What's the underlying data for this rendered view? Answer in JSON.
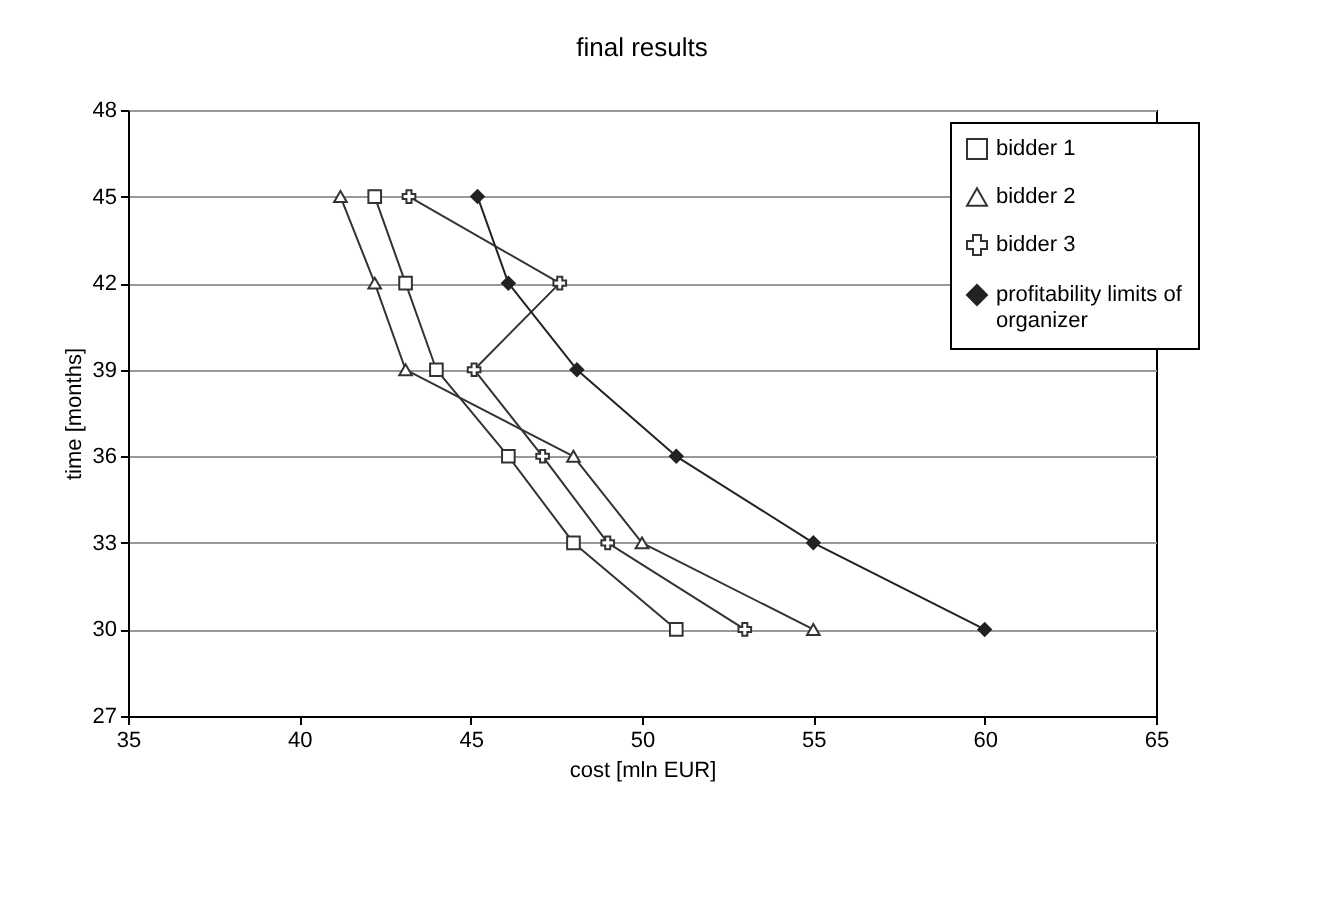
{
  "chart_data": {
    "type": "line",
    "title": "final results",
    "xlabel": "cost [mln EUR]",
    "ylabel": "time [months]",
    "xlim": [
      35,
      65
    ],
    "xticks": [
      35,
      40,
      45,
      50,
      55,
      60,
      65
    ],
    "ylim": [
      27,
      48
    ],
    "yticks": [
      27,
      30,
      33,
      36,
      39,
      42,
      45,
      48
    ],
    "grid": "y",
    "legend": "top right",
    "series": [
      {
        "name": "bidder 1",
        "color": "#333333",
        "marker": "square",
        "x": [
          42.2,
          43.1,
          44,
          46.1,
          48,
          51
        ],
        "values": [
          45,
          42,
          39,
          36,
          33,
          30
        ]
      },
      {
        "name": "bidder 2",
        "color": "#333333",
        "marker": "triangle",
        "x": [
          41.2,
          42.2,
          43.1,
          48,
          50,
          55
        ],
        "values": [
          45,
          42,
          39,
          36,
          33,
          30
        ]
      },
      {
        "name": "bidder 3",
        "color": "#333333",
        "marker": "cross",
        "x": [
          43.2,
          47.6,
          45.1,
          47.1,
          49,
          53
        ],
        "values": [
          45,
          42,
          39,
          36,
          33,
          30
        ]
      },
      {
        "name": "profitability limits of organizer",
        "color": "#222222",
        "marker": "diamond",
        "x": [
          45.2,
          46.1,
          48.1,
          51,
          55,
          60
        ],
        "values": [
          45,
          42,
          39,
          36,
          33,
          30
        ]
      }
    ]
  }
}
